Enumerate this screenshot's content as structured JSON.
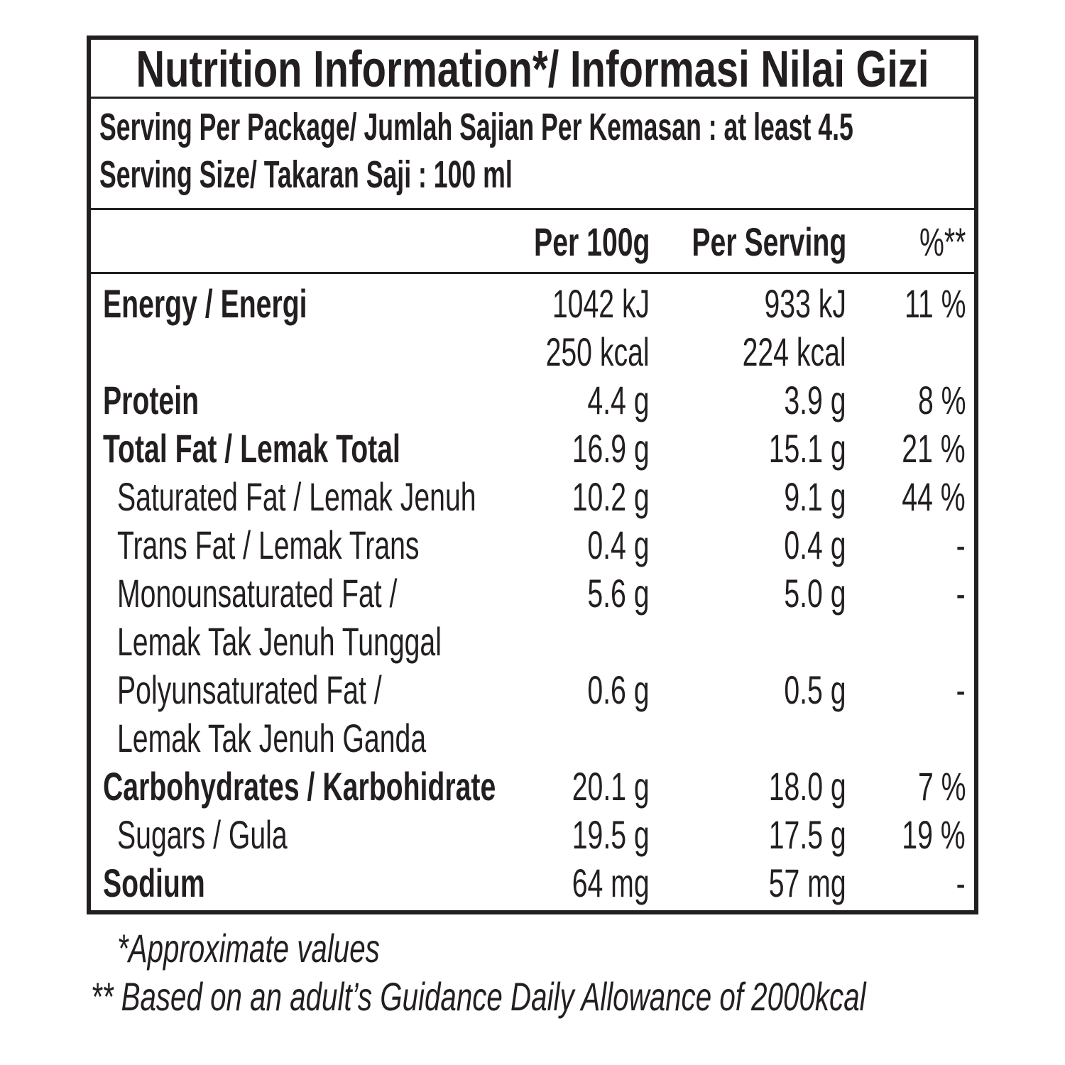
{
  "header": {
    "title": "Nutrition Information*/ Informasi Nilai Gizi",
    "serving_per_package": "Serving Per Package/ Jumlah Sajian Per Kemasan : at least 4.5",
    "serving_size": "Serving Size/ Takaran Saji : 100 ml"
  },
  "table": {
    "columns": [
      "Per 100g",
      "Per Serving",
      "%**"
    ],
    "rows": [
      {
        "name": [
          "Energy / Energi"
        ],
        "bold": true,
        "per_100g": [
          "1042 kJ",
          "250 kcal"
        ],
        "per_serving": [
          "933 kJ",
          "224 kcal"
        ],
        "percent": "11 %"
      },
      {
        "name": [
          "Protein"
        ],
        "bold": true,
        "per_100g": [
          "4.4 g"
        ],
        "per_serving": [
          "3.9 g"
        ],
        "percent": "8 %"
      },
      {
        "name": [
          "Total Fat / Lemak Total"
        ],
        "bold": true,
        "per_100g": [
          "16.9 g"
        ],
        "per_serving": [
          "15.1 g"
        ],
        "percent": "21 %"
      },
      {
        "name": [
          "Saturated Fat / Lemak Jenuh"
        ],
        "bold": false,
        "per_100g": [
          "10.2 g"
        ],
        "per_serving": [
          "9.1 g"
        ],
        "percent": "44 %"
      },
      {
        "name": [
          "Trans Fat / Lemak Trans"
        ],
        "bold": false,
        "per_100g": [
          "0.4 g"
        ],
        "per_serving": [
          "0.4 g"
        ],
        "percent": "-"
      },
      {
        "name": [
          "Monounsaturated Fat /",
          "Lemak Tak Jenuh Tunggal"
        ],
        "bold": false,
        "per_100g": [
          "5.6 g"
        ],
        "per_serving": [
          "5.0 g"
        ],
        "percent": "-"
      },
      {
        "name": [
          "Polyunsaturated Fat /",
          "Lemak Tak Jenuh Ganda"
        ],
        "bold": false,
        "per_100g": [
          "0.6 g"
        ],
        "per_serving": [
          "0.5 g"
        ],
        "percent": "-"
      },
      {
        "name": [
          "Carbohydrates / Karbohidrate"
        ],
        "bold": true,
        "per_100g": [
          "20.1 g"
        ],
        "per_serving": [
          "18.0 g"
        ],
        "percent": "7 %"
      },
      {
        "name": [
          "Sugars / Gula"
        ],
        "bold": false,
        "per_100g": [
          "19.5 g"
        ],
        "per_serving": [
          "17.5 g"
        ],
        "percent": "19 %"
      },
      {
        "name": [
          "Sodium"
        ],
        "bold": true,
        "per_100g": [
          "64 mg"
        ],
        "per_serving": [
          "57 mg"
        ],
        "percent": "-"
      }
    ]
  },
  "footnotes": [
    "*Approximate values",
    "** Based on an adult’s Guidance Daily Allowance of 2000kcal"
  ]
}
